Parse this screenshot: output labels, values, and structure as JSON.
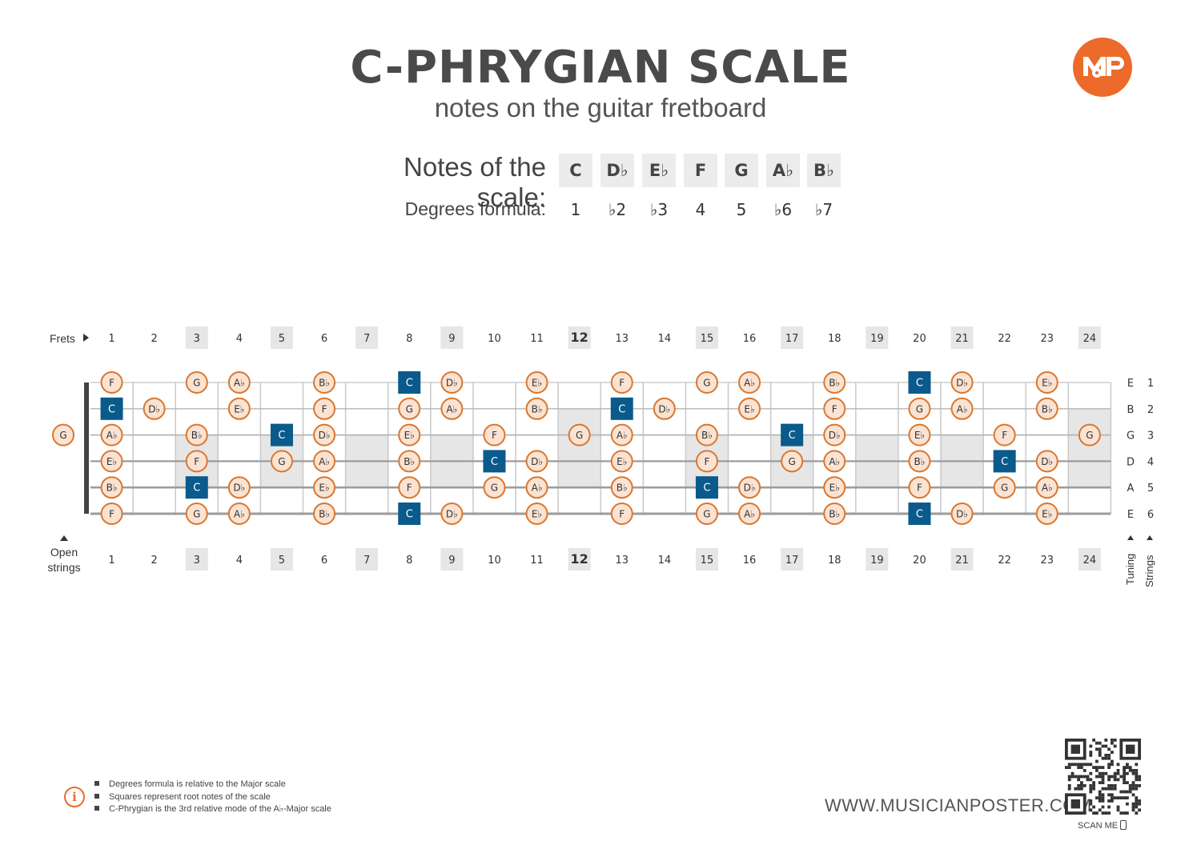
{
  "header": {
    "title": "C-PHRYGIAN SCALE",
    "subtitle": "notes on the guitar fretboard"
  },
  "logo": {
    "icon": "musicianposter-logo-icon",
    "color": "#ec6a2a"
  },
  "scale": {
    "notes_label": "Notes of the scale:",
    "degrees_label": "Degrees formula:",
    "notes": [
      "C",
      "D♭",
      "E♭",
      "F",
      "G",
      "A♭",
      "B♭"
    ],
    "degrees": [
      "1",
      "♭2",
      "♭3",
      "4",
      "5",
      "♭6",
      "♭7"
    ]
  },
  "fretboard": {
    "frets_label": "Frets",
    "open_label_line1": "Open",
    "open_label_line2": "strings",
    "tuning_label": "Tuning",
    "strings_label": "Strings",
    "fret_numbers": [
      "1",
      "2",
      "3",
      "4",
      "5",
      "6",
      "7",
      "8",
      "9",
      "10",
      "11",
      "12",
      "13",
      "14",
      "15",
      "16",
      "17",
      "18",
      "19",
      "20",
      "21",
      "22",
      "23",
      "24"
    ],
    "highlighted_frets": [
      3,
      5,
      7,
      9,
      12,
      15,
      17,
      19,
      21,
      24
    ],
    "bold_fret": 12,
    "strings": [
      {
        "tuning": "E",
        "number": "1",
        "open": "",
        "frets": [
          "F",
          "",
          "G",
          "A♭",
          "",
          "B♭",
          "",
          "C",
          "D♭",
          "",
          "E♭",
          "",
          "F",
          "",
          "G",
          "A♭",
          "",
          "B♭",
          "",
          "C",
          "D♭",
          "",
          "E♭",
          ""
        ]
      },
      {
        "tuning": "B",
        "number": "2",
        "open": "",
        "frets": [
          "C",
          "D♭",
          "",
          "E♭",
          "",
          "F",
          "",
          "G",
          "A♭",
          "",
          "B♭",
          "",
          "C",
          "D♭",
          "",
          "E♭",
          "",
          "F",
          "",
          "G",
          "A♭",
          "",
          "B♭",
          ""
        ]
      },
      {
        "tuning": "G",
        "number": "3",
        "open": "G",
        "frets": [
          "A♭",
          "",
          "B♭",
          "",
          "C",
          "D♭",
          "",
          "E♭",
          "",
          "F",
          "",
          "G",
          "A♭",
          "",
          "B♭",
          "",
          "C",
          "D♭",
          "",
          "E♭",
          "",
          "F",
          "",
          "G"
        ]
      },
      {
        "tuning": "D",
        "number": "4",
        "open": "",
        "frets": [
          "E♭",
          "",
          "F",
          "",
          "G",
          "A♭",
          "",
          "B♭",
          "",
          "C",
          "D♭",
          "",
          "E♭",
          "",
          "F",
          "",
          "G",
          "A♭",
          "",
          "B♭",
          "",
          "C",
          "D♭",
          ""
        ]
      },
      {
        "tuning": "A",
        "number": "5",
        "open": "",
        "frets": [
          "B♭",
          "",
          "C",
          "D♭",
          "",
          "E♭",
          "",
          "F",
          "",
          "G",
          "A♭",
          "",
          "B♭",
          "",
          "C",
          "D♭",
          "",
          "E♭",
          "",
          "F",
          "",
          "G",
          "A♭",
          ""
        ]
      },
      {
        "tuning": "E",
        "number": "6",
        "open": "",
        "frets": [
          "F",
          "",
          "G",
          "A♭",
          "",
          "B♭",
          "",
          "C",
          "D♭",
          "",
          "E♭",
          "",
          "F",
          "",
          "G",
          "A♭",
          "",
          "B♭",
          "",
          "C",
          "D♭",
          "",
          "E♭",
          ""
        ]
      }
    ],
    "root_note": "C",
    "colors": {
      "root": "#0a5a8c",
      "note_fill": "#fbe3d3",
      "note_stroke": "#d9772f",
      "marker": "#e6e6e6"
    }
  },
  "notes_footer": {
    "info_icon": "info-icon",
    "items": [
      "Degrees formula is relative to the Major scale",
      "Squares represent root notes of the scale",
      "C-Phrygian is the 3rd relative mode of the A♭-Major scale"
    ]
  },
  "footer": {
    "website": "WWW.MUSICIANPOSTER.COM",
    "scan_label": "SCAN ME",
    "qr_icon": "qr-code-icon",
    "phone_icon": "phone-icon"
  }
}
